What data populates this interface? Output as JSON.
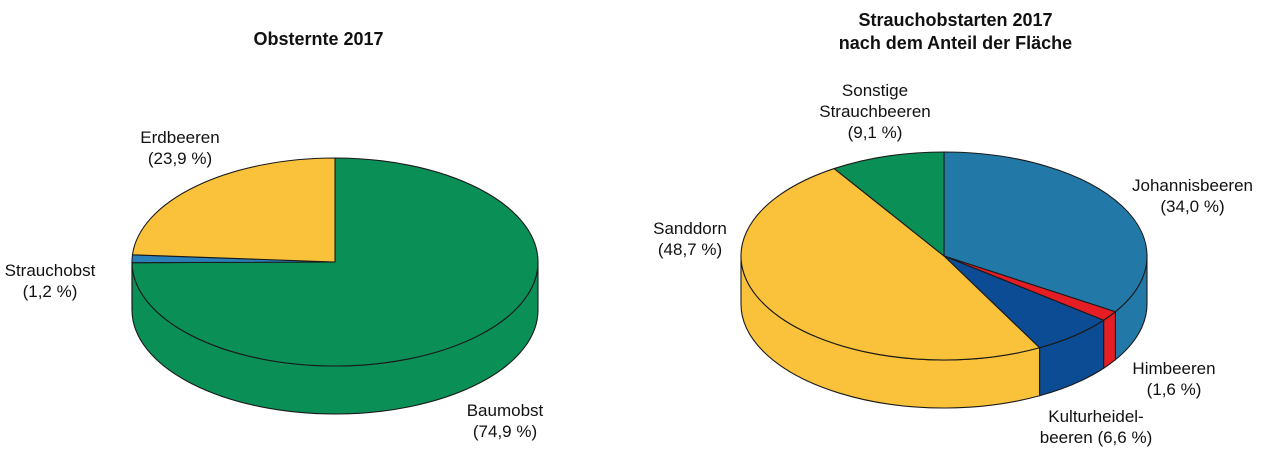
{
  "chart_data": [
    {
      "type": "pie",
      "title": "Obsternte 2017",
      "slices": [
        {
          "label": "Baumobst",
          "value": 74.9,
          "value_text": "(74,9 %)",
          "color": "#0a8f57",
          "side_color": "#0a8f57"
        },
        {
          "label": "Strauchobst",
          "value": 1.2,
          "value_text": "(1,2 %)",
          "color": "#2a80b9",
          "side_color": "#2a80b9"
        },
        {
          "label": "Erdbeeren",
          "value": 23.9,
          "value_text": "(23,9 %)",
          "color": "#fac23a",
          "side_color": "#fac23a"
        }
      ]
    },
    {
      "type": "pie",
      "title": "Strauchobstarten 2017",
      "subtitle": "nach dem Anteil der Fläche",
      "slices": [
        {
          "label": "Johannisbeeren",
          "value": 34.0,
          "value_text": "(34,0 %)",
          "color": "#2279a8",
          "side_color": "#2279a8"
        },
        {
          "label": "Himbeeren",
          "value": 1.6,
          "value_text": "(1,6 %)",
          "color": "#e51d24",
          "side_color": "#e51d24"
        },
        {
          "label": "Kulturheidel-",
          "label2": "beeren",
          "value": 6.6,
          "value_text": "(6,6 %)",
          "color": "#0b4c94",
          "side_color": "#0b4c94"
        },
        {
          "label": "Sanddorn",
          "value": 48.7,
          "value_text": "(48,7 %)",
          "color": "#fac23a",
          "side_color": "#fac23a"
        },
        {
          "label": "Sonstige",
          "label2": "Strauchbeeren",
          "value": 9.1,
          "value_text": "(9,1 %)",
          "color": "#0a8f57",
          "side_color": "#0a8f57"
        }
      ]
    }
  ]
}
